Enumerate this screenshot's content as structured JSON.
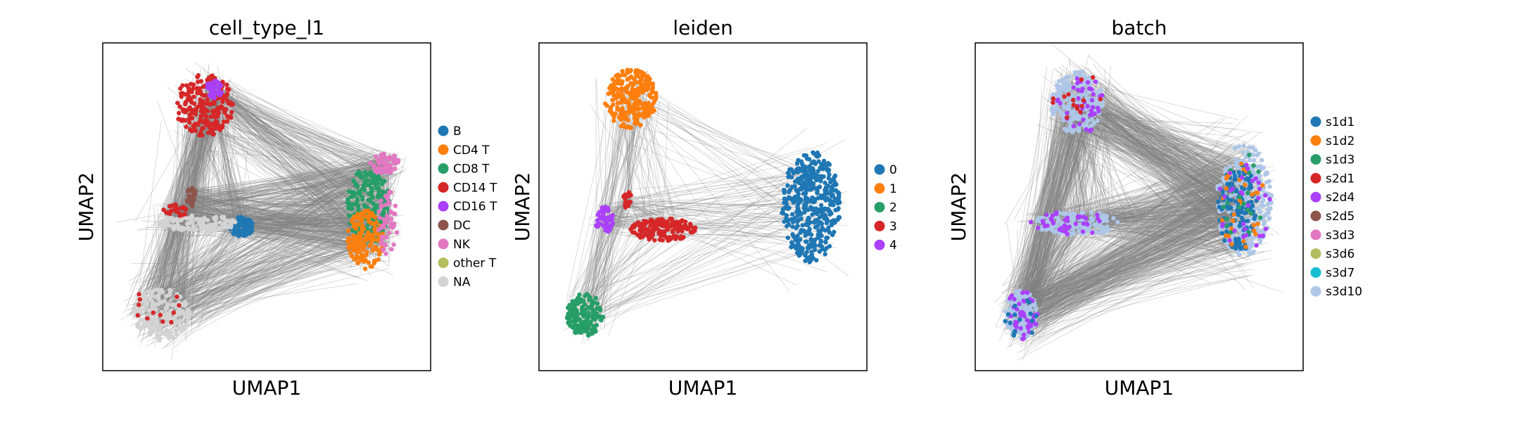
{
  "chart_data": [
    {
      "type": "scatter",
      "title": "cell_type_l1",
      "xlabel": "UMAP1",
      "ylabel": "UMAP2",
      "xticks": false,
      "yticks": false,
      "edges_color": "#808080",
      "legend_placement": "right",
      "series": [
        {
          "name": "B",
          "color": "#1f77b4"
        },
        {
          "name": "CD4 T",
          "color": "#ff7f0e"
        },
        {
          "name": "CD8 T",
          "color": "#279e68"
        },
        {
          "name": "CD14 T",
          "color": "#d62728"
        },
        {
          "name": "CD16 T",
          "color": "#aa40fc"
        },
        {
          "name": "DC",
          "color": "#8c564b"
        },
        {
          "name": "NK",
          "color": "#e377c2"
        },
        {
          "name": "other T",
          "color": "#b5bd61"
        },
        {
          "name": "NA",
          "color": "#d3d3d3"
        }
      ],
      "clusters": [
        {
          "series": "CD14 T",
          "cx": 0.31,
          "cy": 0.81,
          "rx": 0.09,
          "ry": 0.095,
          "n": 220
        },
        {
          "series": "CD16 T",
          "cx": 0.34,
          "cy": 0.86,
          "rx": 0.025,
          "ry": 0.03,
          "n": 40
        },
        {
          "series": "NK",
          "cx": 0.86,
          "cy": 0.63,
          "rx": 0.045,
          "ry": 0.035,
          "n": 60
        },
        {
          "series": "CD8 T",
          "cx": 0.81,
          "cy": 0.5,
          "rx": 0.065,
          "ry": 0.12,
          "n": 220
        },
        {
          "series": "CD4 T",
          "cx": 0.8,
          "cy": 0.4,
          "rx": 0.055,
          "ry": 0.09,
          "n": 150
        },
        {
          "series": "NK",
          "cx": 0.87,
          "cy": 0.45,
          "rx": 0.03,
          "ry": 0.1,
          "n": 50
        },
        {
          "series": "B",
          "cx": 0.42,
          "cy": 0.44,
          "rx": 0.04,
          "ry": 0.03,
          "n": 80
        },
        {
          "series": "NA",
          "cx": 0.29,
          "cy": 0.45,
          "rx": 0.12,
          "ry": 0.025,
          "n": 120
        },
        {
          "series": "CD14 T",
          "cx": 0.22,
          "cy": 0.49,
          "rx": 0.04,
          "ry": 0.02,
          "n": 25
        },
        {
          "series": "DC",
          "cx": 0.27,
          "cy": 0.53,
          "rx": 0.015,
          "ry": 0.03,
          "n": 20
        },
        {
          "series": "NA",
          "cx": 0.18,
          "cy": 0.17,
          "rx": 0.085,
          "ry": 0.08,
          "n": 200
        },
        {
          "series": "CD14 T",
          "cx": 0.17,
          "cy": 0.18,
          "rx": 0.08,
          "ry": 0.08,
          "n": 12
        }
      ]
    },
    {
      "type": "scatter",
      "title": "leiden",
      "xlabel": "UMAP1",
      "ylabel": "UMAP2",
      "xticks": false,
      "yticks": false,
      "edges_color": "#808080",
      "legend_placement": "right",
      "series": [
        {
          "name": "0",
          "color": "#1f77b4"
        },
        {
          "name": "1",
          "color": "#ff7f0e"
        },
        {
          "name": "2",
          "color": "#279e68"
        },
        {
          "name": "3",
          "color": "#d62728"
        },
        {
          "name": "4",
          "color": "#aa40fc"
        }
      ],
      "clusters": [
        {
          "series": "1",
          "cx": 0.28,
          "cy": 0.83,
          "rx": 0.08,
          "ry": 0.09,
          "n": 260
        },
        {
          "series": "0",
          "cx": 0.83,
          "cy": 0.5,
          "rx": 0.09,
          "ry": 0.17,
          "n": 420
        },
        {
          "series": "3",
          "cx": 0.38,
          "cy": 0.43,
          "rx": 0.1,
          "ry": 0.035,
          "n": 170
        },
        {
          "series": "4",
          "cx": 0.2,
          "cy": 0.46,
          "rx": 0.03,
          "ry": 0.04,
          "n": 50
        },
        {
          "series": "3",
          "cx": 0.27,
          "cy": 0.52,
          "rx": 0.015,
          "ry": 0.025,
          "n": 20
        },
        {
          "series": "2",
          "cx": 0.14,
          "cy": 0.17,
          "rx": 0.055,
          "ry": 0.065,
          "n": 170
        }
      ]
    },
    {
      "type": "scatter",
      "title": "batch",
      "xlabel": "UMAP1",
      "ylabel": "UMAP2",
      "xticks": false,
      "yticks": false,
      "edges_color": "#808080",
      "legend_placement": "right",
      "series": [
        {
          "name": "s1d1",
          "color": "#1f77b4"
        },
        {
          "name": "s1d2",
          "color": "#ff7f0e"
        },
        {
          "name": "s1d3",
          "color": "#279e68"
        },
        {
          "name": "s2d1",
          "color": "#d62728"
        },
        {
          "name": "s2d4",
          "color": "#aa40fc"
        },
        {
          "name": "s2d5",
          "color": "#8c564b"
        },
        {
          "name": "s3d3",
          "color": "#e377c2"
        },
        {
          "name": "s3d6",
          "color": "#b5bd61"
        },
        {
          "name": "s3d7",
          "color": "#17becf"
        },
        {
          "name": "s3d10",
          "color": "#aec7e8"
        }
      ],
      "clusters": [
        {
          "series": "s3d10",
          "cx": 0.31,
          "cy": 0.82,
          "rx": 0.08,
          "ry": 0.095,
          "n": 240
        },
        {
          "series": "s2d4",
          "cx": 0.33,
          "cy": 0.82,
          "rx": 0.08,
          "ry": 0.095,
          "n": 40
        },
        {
          "series": "s2d1",
          "cx": 0.31,
          "cy": 0.82,
          "rx": 0.08,
          "ry": 0.095,
          "n": 15
        },
        {
          "series": "s3d10",
          "cx": 0.82,
          "cy": 0.52,
          "rx": 0.085,
          "ry": 0.17,
          "n": 280
        },
        {
          "series": "s1d1",
          "cx": 0.8,
          "cy": 0.5,
          "rx": 0.06,
          "ry": 0.14,
          "n": 130
        },
        {
          "series": "s1d2",
          "cx": 0.82,
          "cy": 0.5,
          "rx": 0.07,
          "ry": 0.15,
          "n": 30
        },
        {
          "series": "s1d3",
          "cx": 0.81,
          "cy": 0.52,
          "rx": 0.07,
          "ry": 0.15,
          "n": 20
        },
        {
          "series": "s2d4",
          "cx": 0.82,
          "cy": 0.52,
          "rx": 0.08,
          "ry": 0.16,
          "n": 30
        },
        {
          "series": "s3d10",
          "cx": 0.31,
          "cy": 0.45,
          "rx": 0.13,
          "ry": 0.035,
          "n": 180
        },
        {
          "series": "s2d4",
          "cx": 0.29,
          "cy": 0.45,
          "rx": 0.13,
          "ry": 0.035,
          "n": 40
        },
        {
          "series": "s3d10",
          "cx": 0.14,
          "cy": 0.17,
          "rx": 0.05,
          "ry": 0.075,
          "n": 170
        },
        {
          "series": "s2d4",
          "cx": 0.14,
          "cy": 0.17,
          "rx": 0.05,
          "ry": 0.075,
          "n": 45
        },
        {
          "series": "s1d1",
          "cx": 0.14,
          "cy": 0.17,
          "rx": 0.05,
          "ry": 0.075,
          "n": 15
        }
      ]
    }
  ]
}
